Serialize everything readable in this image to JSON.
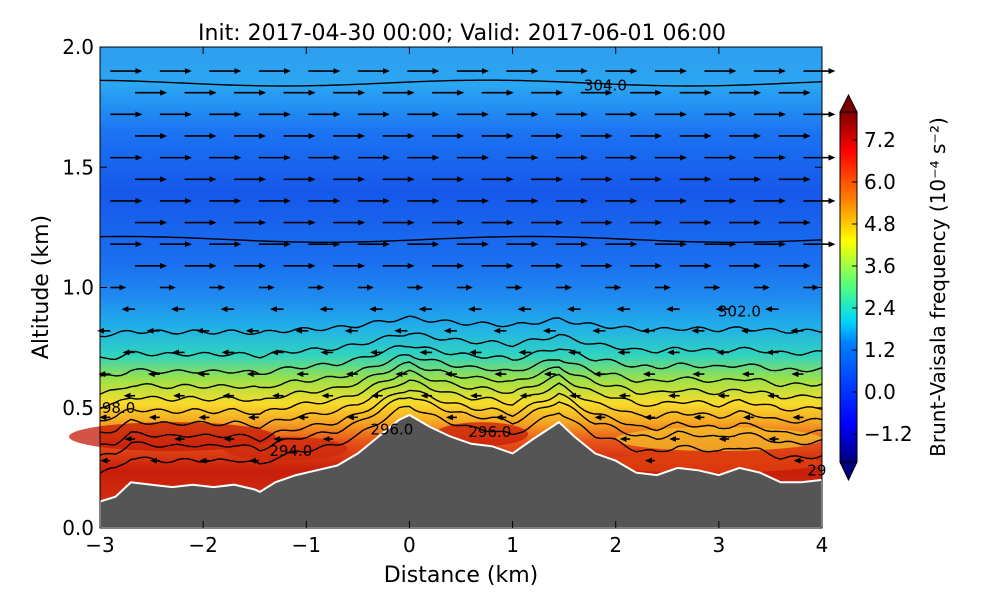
{
  "chart_data": {
    "type": "heatmap",
    "title": "Init: 2017-04-30 00:00; Valid: 2017-06-01 06:00",
    "xlabel": "Distance (km)",
    "ylabel": "Altitude (km)",
    "xlim": [
      -3,
      4
    ],
    "ylim": [
      0.0,
      2.0
    ],
    "x_ticks": [
      "−3",
      "−2",
      "−1",
      "0",
      "1",
      "2",
      "3",
      "4"
    ],
    "y_ticks": [
      "0.0",
      "0.5",
      "1.0",
      "1.5",
      "2.0"
    ],
    "colorbar": {
      "label": "Brunt-Vaisala frequency (10⁻⁴ s⁻²)",
      "range": [
        -2.0,
        8.0
      ],
      "ticks": [
        "−1.2",
        "0.0",
        "1.2",
        "2.4",
        "3.6",
        "4.8",
        "6.0",
        "7.2"
      ],
      "colormap": "jet",
      "extend": "both"
    },
    "terrain_profile": {
      "x": [
        -3.0,
        -2.85,
        -2.7,
        -2.5,
        -2.3,
        -2.1,
        -1.9,
        -1.7,
        -1.5,
        -1.45,
        -1.3,
        -1.1,
        -0.9,
        -0.7,
        -0.5,
        -0.3,
        -0.1,
        0.0,
        0.2,
        0.4,
        0.6,
        0.8,
        1.0,
        1.2,
        1.45,
        1.6,
        1.8,
        2.0,
        2.2,
        2.4,
        2.6,
        2.8,
        3.0,
        3.2,
        3.4,
        3.6,
        3.8,
        4.0
      ],
      "y": [
        0.11,
        0.13,
        0.19,
        0.18,
        0.17,
        0.18,
        0.17,
        0.18,
        0.16,
        0.15,
        0.19,
        0.22,
        0.24,
        0.26,
        0.31,
        0.38,
        0.45,
        0.47,
        0.42,
        0.38,
        0.35,
        0.34,
        0.31,
        0.37,
        0.44,
        0.38,
        0.31,
        0.28,
        0.23,
        0.22,
        0.25,
        0.24,
        0.22,
        0.25,
        0.23,
        0.19,
        0.19,
        0.2
      ]
    },
    "contour_labels": [
      {
        "text": "304.0",
        "x": 1.9,
        "y": 1.84
      },
      {
        "text": "302.0",
        "x": 3.2,
        "y": 0.9
      },
      {
        "text": "98.0",
        "x": -2.82,
        "y": 0.5
      },
      {
        "text": "296.0",
        "x": -0.17,
        "y": 0.41
      },
      {
        "text": "296.0",
        "x": 0.78,
        "y": 0.4
      },
      {
        "text": "294.0",
        "x": -1.15,
        "y": 0.32
      },
      {
        "text": "29",
        "x": 3.95,
        "y": 0.24
      }
    ],
    "wind_vectors": "rightward arrows above ~1.0 km; weak leftward/short arrows below ~0.9 km"
  }
}
